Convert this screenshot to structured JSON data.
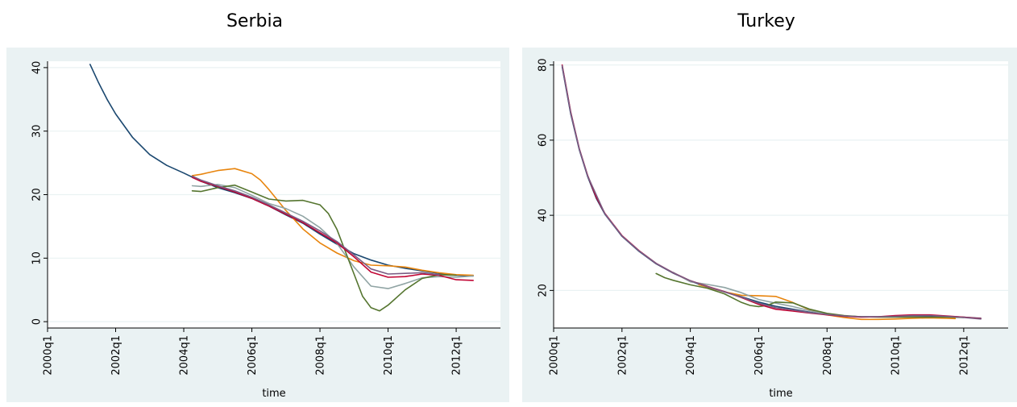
{
  "chart_data": [
    {
      "type": "line",
      "title": "Serbia",
      "xlabel": "time",
      "ylabel": "",
      "x_ticks": [
        "2000q1",
        "2002q1",
        "2004q1",
        "2006q1",
        "2008q1",
        "2010q1",
        "2012q1"
      ],
      "y_ticks": [
        0,
        10,
        20,
        30,
        40
      ],
      "xlim": [
        2000.0,
        2013.3
      ],
      "ylim": [
        -1,
        41
      ],
      "grid": true,
      "series": [
        {
          "color": "#1a476f",
          "points": [
            [
              2001.25,
              40.5
            ],
            [
              2001.5,
              37.6
            ],
            [
              2001.75,
              35.0
            ],
            [
              2002.0,
              32.7
            ],
            [
              2002.5,
              29.0
            ],
            [
              2003.0,
              26.3
            ],
            [
              2003.5,
              24.6
            ],
            [
              2004.0,
              23.4
            ],
            [
              2004.5,
              22.1
            ],
            [
              2005.0,
              21.1
            ],
            [
              2005.5,
              20.3
            ],
            [
              2006.0,
              19.4
            ],
            [
              2006.5,
              18.2
            ],
            [
              2007.0,
              16.8
            ],
            [
              2007.5,
              15.5
            ],
            [
              2008.0,
              13.8
            ],
            [
              2008.5,
              12.2
            ],
            [
              2009.0,
              10.7
            ],
            [
              2009.5,
              9.7
            ],
            [
              2010.0,
              8.9
            ],
            [
              2010.5,
              8.4
            ],
            [
              2011.0,
              8.0
            ],
            [
              2011.5,
              7.6
            ],
            [
              2012.0,
              7.3
            ],
            [
              2012.5,
              7.2
            ]
          ]
        },
        {
          "color": "#e8850e",
          "points": [
            [
              2004.25,
              23.0
            ],
            [
              2004.5,
              23.2
            ],
            [
              2005.0,
              23.8
            ],
            [
              2005.5,
              24.1
            ],
            [
              2006.0,
              23.3
            ],
            [
              2006.25,
              22.3
            ],
            [
              2006.5,
              20.8
            ],
            [
              2007.0,
              17.5
            ],
            [
              2007.5,
              14.6
            ],
            [
              2008.0,
              12.4
            ],
            [
              2008.5,
              10.8
            ],
            [
              2009.0,
              9.6
            ],
            [
              2009.5,
              8.9
            ],
            [
              2010.0,
              8.8
            ],
            [
              2010.5,
              8.6
            ],
            [
              2011.0,
              8.1
            ],
            [
              2011.5,
              7.7
            ],
            [
              2012.0,
              7.4
            ],
            [
              2012.5,
              7.3
            ]
          ]
        },
        {
          "color": "#90a4a4",
          "points": [
            [
              2004.25,
              21.4
            ],
            [
              2004.5,
              21.3
            ],
            [
              2005.0,
              21.6
            ],
            [
              2005.5,
              21.1
            ],
            [
              2006.0,
              19.9
            ],
            [
              2006.5,
              18.6
            ],
            [
              2007.0,
              17.8
            ],
            [
              2007.5,
              16.6
            ],
            [
              2008.0,
              14.8
            ],
            [
              2008.5,
              12.3
            ],
            [
              2009.0,
              8.6
            ],
            [
              2009.5,
              5.6
            ],
            [
              2010.0,
              5.2
            ],
            [
              2010.5,
              6.0
            ],
            [
              2011.0,
              6.9
            ],
            [
              2011.5,
              7.1
            ],
            [
              2012.0,
              7.0
            ],
            [
              2012.5,
              7.2
            ]
          ]
        },
        {
          "color": "#55752f",
          "points": [
            [
              2004.25,
              20.6
            ],
            [
              2004.5,
              20.5
            ],
            [
              2005.0,
              21.1
            ],
            [
              2005.5,
              21.5
            ],
            [
              2006.0,
              20.4
            ],
            [
              2006.5,
              19.3
            ],
            [
              2007.0,
              19.0
            ],
            [
              2007.5,
              19.1
            ],
            [
              2008.0,
              18.4
            ],
            [
              2008.25,
              17.0
            ],
            [
              2008.5,
              14.5
            ],
            [
              2008.75,
              11.0
            ],
            [
              2009.0,
              7.5
            ],
            [
              2009.25,
              4.0
            ],
            [
              2009.5,
              2.2
            ],
            [
              2009.75,
              1.7
            ],
            [
              2010.0,
              2.6
            ],
            [
              2010.5,
              5.0
            ],
            [
              2011.0,
              6.8
            ],
            [
              2011.5,
              7.4
            ],
            [
              2012.0,
              7.3
            ]
          ]
        },
        {
          "color": "#c10534",
          "points": [
            [
              2004.25,
              22.7
            ],
            [
              2004.5,
              22.1
            ],
            [
              2005.0,
              21.3
            ],
            [
              2005.5,
              20.4
            ],
            [
              2006.0,
              19.4
            ],
            [
              2006.5,
              18.2
            ],
            [
              2007.0,
              16.9
            ],
            [
              2007.5,
              15.6
            ],
            [
              2008.0,
              14.0
            ],
            [
              2008.5,
              12.4
            ],
            [
              2009.0,
              10.2
            ],
            [
              2009.5,
              7.8
            ],
            [
              2010.0,
              7.0
            ],
            [
              2010.5,
              7.1
            ],
            [
              2011.0,
              7.5
            ],
            [
              2011.5,
              7.3
            ],
            [
              2012.0,
              6.6
            ],
            [
              2012.5,
              6.5
            ]
          ]
        },
        {
          "color": "#7b5c83",
          "points": [
            [
              2004.25,
              22.9
            ],
            [
              2004.5,
              22.3
            ],
            [
              2005.0,
              21.4
            ],
            [
              2005.5,
              20.6
            ],
            [
              2006.0,
              19.6
            ],
            [
              2006.5,
              18.4
            ],
            [
              2007.0,
              17.1
            ],
            [
              2007.5,
              15.8
            ],
            [
              2008.0,
              14.3
            ],
            [
              2008.5,
              12.6
            ],
            [
              2009.0,
              10.5
            ],
            [
              2009.5,
              8.3
            ],
            [
              2010.0,
              7.5
            ],
            [
              2010.5,
              7.6
            ],
            [
              2011.0,
              7.7
            ],
            [
              2011.5,
              7.4
            ]
          ]
        }
      ]
    },
    {
      "type": "line",
      "title": "Turkey",
      "xlabel": "time",
      "ylabel": "",
      "x_ticks": [
        "2000q1",
        "2002q1",
        "2004q1",
        "2006q1",
        "2008q1",
        "2010q1",
        "2012q1"
      ],
      "y_ticks": [
        20,
        40,
        60,
        80
      ],
      "xlim": [
        2000.0,
        2013.3
      ],
      "ylim": [
        10,
        81
      ],
      "grid": true,
      "series": [
        {
          "color": "#1a476f",
          "points": [
            [
              2000.25,
              79.5
            ],
            [
              2000.5,
              67.0
            ],
            [
              2000.75,
              57.5
            ],
            [
              2001.0,
              50.2
            ],
            [
              2001.25,
              44.5
            ],
            [
              2001.5,
              40.3
            ],
            [
              2002.0,
              34.4
            ],
            [
              2002.5,
              30.4
            ],
            [
              2003.0,
              27.1
            ],
            [
              2003.5,
              24.6
            ],
            [
              2004.0,
              22.5
            ],
            [
              2004.5,
              20.9
            ],
            [
              2005.0,
              19.6
            ],
            [
              2005.5,
              18.3
            ],
            [
              2006.0,
              16.9
            ],
            [
              2006.5,
              15.8
            ],
            [
              2007.0,
              15.0
            ],
            [
              2007.5,
              14.2
            ],
            [
              2008.0,
              13.6
            ],
            [
              2008.5,
              13.2
            ],
            [
              2009.0,
              13.0
            ],
            [
              2009.5,
              13.0
            ],
            [
              2010.0,
              13.0
            ],
            [
              2010.5,
              13.1
            ],
            [
              2011.0,
              13.2
            ],
            [
              2011.5,
              13.1
            ],
            [
              2012.0,
              12.9
            ],
            [
              2012.5,
              12.6
            ]
          ]
        },
        {
          "color": "#e8850e",
          "points": [
            [
              2004.25,
              21.5
            ],
            [
              2004.5,
              20.9
            ],
            [
              2005.0,
              19.6
            ],
            [
              2005.5,
              18.7
            ],
            [
              2006.0,
              18.6
            ],
            [
              2006.5,
              18.4
            ],
            [
              2007.0,
              16.8
            ],
            [
              2007.5,
              14.8
            ],
            [
              2008.0,
              13.5
            ],
            [
              2008.5,
              12.8
            ],
            [
              2009.0,
              12.3
            ],
            [
              2009.5,
              12.3
            ],
            [
              2010.0,
              12.4
            ],
            [
              2010.5,
              12.6
            ],
            [
              2011.0,
              12.7
            ],
            [
              2011.5,
              12.6
            ],
            [
              2011.75,
              12.5
            ]
          ]
        },
        {
          "color": "#90a4a4",
          "points": [
            [
              2003.5,
              24.8
            ],
            [
              2004.0,
              22.3
            ],
            [
              2004.5,
              21.6
            ],
            [
              2005.0,
              20.8
            ],
            [
              2005.5,
              19.4
            ],
            [
              2006.0,
              17.6
            ],
            [
              2006.5,
              16.6
            ],
            [
              2007.0,
              15.7
            ],
            [
              2007.5,
              14.6
            ],
            [
              2008.0,
              13.7
            ],
            [
              2008.5,
              13.1
            ],
            [
              2009.0,
              13.0
            ],
            [
              2009.5,
              13.0
            ],
            [
              2010.0,
              13.0
            ],
            [
              2010.5,
              13.2
            ],
            [
              2011.0,
              13.3
            ],
            [
              2011.5,
              13.1
            ],
            [
              2012.0,
              12.9
            ]
          ]
        },
        {
          "color": "#55752f",
          "points": [
            [
              2003.0,
              24.5
            ],
            [
              2003.25,
              23.4
            ],
            [
              2003.5,
              22.7
            ],
            [
              2004.0,
              21.5
            ],
            [
              2004.5,
              20.6
            ],
            [
              2005.0,
              19.1
            ],
            [
              2005.5,
              16.8
            ],
            [
              2005.75,
              16.0
            ],
            [
              2006.0,
              15.7
            ],
            [
              2006.25,
              16.0
            ],
            [
              2006.5,
              16.9
            ],
            [
              2007.0,
              16.7
            ],
            [
              2007.5,
              15.0
            ],
            [
              2008.0,
              13.9
            ],
            [
              2008.5,
              13.3
            ],
            [
              2009.0,
              13.0
            ],
            [
              2009.5,
              12.9
            ],
            [
              2010.0,
              12.9
            ],
            [
              2010.5,
              12.9
            ],
            [
              2011.0,
              12.9
            ],
            [
              2011.5,
              12.9
            ],
            [
              2012.0,
              12.8
            ]
          ]
        },
        {
          "color": "#c10534",
          "points": [
            [
              2000.25,
              80.0
            ],
            [
              2000.5,
              67.5
            ],
            [
              2000.75,
              57.8
            ],
            [
              2001.0,
              50.5
            ],
            [
              2001.25,
              44.8
            ],
            [
              2001.5,
              40.5
            ],
            [
              2002.0,
              34.6
            ],
            [
              2002.5,
              30.6
            ],
            [
              2003.0,
              27.2
            ],
            [
              2003.5,
              24.7
            ],
            [
              2004.0,
              22.6
            ],
            [
              2004.5,
              21.1
            ],
            [
              2005.0,
              19.7
            ],
            [
              2005.5,
              18.1
            ],
            [
              2006.0,
              16.3
            ],
            [
              2006.5,
              15.0
            ],
            [
              2007.0,
              14.5
            ],
            [
              2007.5,
              14.0
            ],
            [
              2008.0,
              13.5
            ],
            [
              2008.5,
              13.1
            ],
            [
              2009.0,
              12.9
            ],
            [
              2009.5,
              13.0
            ],
            [
              2010.0,
              13.3
            ],
            [
              2010.5,
              13.5
            ],
            [
              2011.0,
              13.5
            ],
            [
              2011.5,
              13.2
            ],
            [
              2012.0,
              12.9
            ],
            [
              2012.5,
              12.5
            ]
          ]
        },
        {
          "color": "#7b5c83",
          "points": [
            [
              2000.25,
              79.8
            ],
            [
              2000.5,
              67.3
            ],
            [
              2000.75,
              57.7
            ],
            [
              2001.0,
              50.4
            ],
            [
              2001.5,
              40.4
            ],
            [
              2002.0,
              34.5
            ],
            [
              2002.5,
              30.5
            ],
            [
              2003.0,
              27.2
            ],
            [
              2003.5,
              24.7
            ],
            [
              2004.0,
              22.6
            ],
            [
              2004.5,
              21.0
            ],
            [
              2005.0,
              19.6
            ],
            [
              2005.5,
              18.2
            ],
            [
              2006.0,
              16.6
            ],
            [
              2006.5,
              15.4
            ],
            [
              2007.0,
              14.8
            ],
            [
              2007.5,
              14.1
            ],
            [
              2008.0,
              13.6
            ],
            [
              2008.5,
              13.2
            ],
            [
              2009.0,
              13.0
            ],
            [
              2009.5,
              13.0
            ],
            [
              2010.0,
              13.1
            ],
            [
              2010.5,
              13.3
            ],
            [
              2011.0,
              13.3
            ],
            [
              2011.5,
              13.1
            ],
            [
              2012.0,
              12.8
            ],
            [
              2012.5,
              12.4
            ]
          ]
        }
      ]
    }
  ]
}
